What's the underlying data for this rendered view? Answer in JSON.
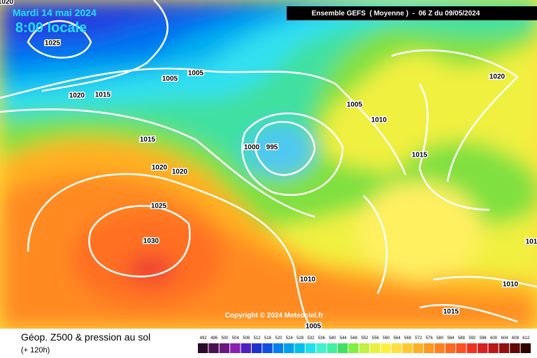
{
  "header": {
    "date": "Mardi 14 mai 2024",
    "time": "8:00 locale",
    "model": "Ensemble GEFS  ( Moyenne )  -  06 Z du 09/05/2024"
  },
  "isobars": [
    "1020",
    "1025",
    "1005",
    "1005",
    "1020",
    "1015",
    "1015",
    "1020",
    "1020",
    "1025",
    "1030",
    "1000",
    "995",
    "1005",
    "1010",
    "1015",
    "1020",
    "101",
    "1010",
    "1010",
    "1015",
    "1005"
  ],
  "footer": {
    "title": "Géop. Z500 & pression au sol",
    "lead": "(+ 120h)",
    "copyright": "Copyright © 2024 Meteociel.fr"
  },
  "legend": {
    "levels": [
      "492",
      "496",
      "500",
      "504",
      "508",
      "512",
      "516",
      "520",
      "524",
      "528",
      "532",
      "536",
      "540",
      "544",
      "548",
      "552",
      "556",
      "560",
      "564",
      "568",
      "572",
      "576",
      "580",
      "584",
      "588",
      "592",
      "596",
      "600",
      "604",
      "608",
      "612"
    ],
    "colors": [
      "#2a0a2a",
      "#4a1050",
      "#6a1880",
      "#8a20b0",
      "#5020c0",
      "#2030d0",
      "#1050e0",
      "#0080f0",
      "#00a0f0",
      "#00c0f0",
      "#20e0f0",
      "#40f0d0",
      "#40f0a0",
      "#40e060",
      "#80f040",
      "#c0f040",
      "#e8f040",
      "#fff040",
      "#ffe040",
      "#ffc830",
      "#ffb020",
      "#ff9820",
      "#ff8020",
      "#ff6820",
      "#ff5020",
      "#f03020",
      "#d82020",
      "#b81818",
      "#901010",
      "#600808",
      "#300000"
    ]
  }
}
